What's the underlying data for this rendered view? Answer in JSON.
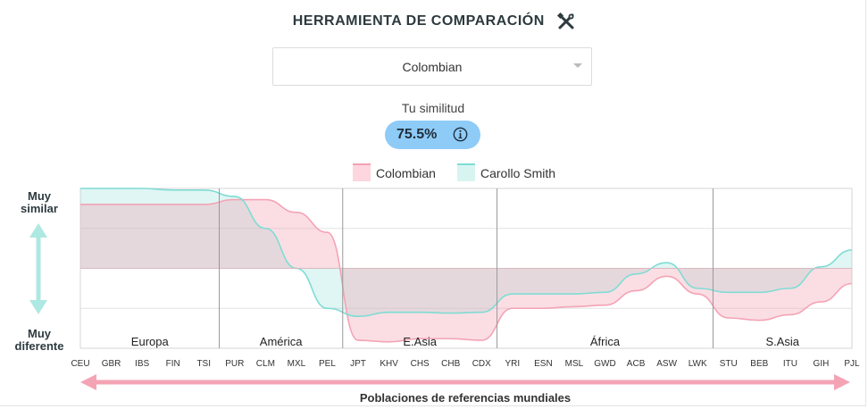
{
  "header": {
    "title": "HERRAMIENTA DE COMPARACIÓN",
    "icon": "tools-icon"
  },
  "selector": {
    "value": "Colombian"
  },
  "similarity": {
    "label": "Tu similitud",
    "value": "75.5%",
    "icon": "info-icon"
  },
  "legend": [
    {
      "label": "Colombian",
      "color": "#f2a0b3"
    },
    {
      "label": "Carollo Smith",
      "color": "#7fdcd3"
    }
  ],
  "y_axis": {
    "top_label_1": "Muy",
    "top_label_2": "similar",
    "bottom_label_1": "Muy",
    "bottom_label_2": "diferente"
  },
  "x_axis": {
    "label": "Poblaciones de referencias mundiales"
  },
  "chart_data": {
    "type": "area",
    "regions": [
      "Europa",
      "América",
      "E.Asia",
      "África",
      "S.Asia"
    ],
    "region_boundaries": [
      "TSI/PUR",
      "PEL/JPT",
      "CDX/YRI",
      "LWK/STU"
    ],
    "categories": [
      "CEU",
      "GBR",
      "IBS",
      "FIN",
      "TSI",
      "PUR",
      "CLM",
      "MXL",
      "PEL",
      "JPT",
      "KHV",
      "CHS",
      "CHB",
      "CDX",
      "YRI",
      "ESN",
      "MSL",
      "GWD",
      "ACB",
      "ASW",
      "LWK",
      "STU",
      "BEB",
      "ITU",
      "GIH",
      "PJL"
    ],
    "series": [
      {
        "name": "Colombian",
        "color": "#f2a0b3",
        "values": [
          0.8,
          0.8,
          0.8,
          0.8,
          0.8,
          0.86,
          0.86,
          0.7,
          0.45,
          -0.9,
          -0.92,
          -0.88,
          -0.88,
          -0.9,
          -0.5,
          -0.5,
          -0.48,
          -0.46,
          -0.28,
          -0.1,
          -0.32,
          -0.62,
          -0.65,
          -0.58,
          -0.42,
          -0.19
        ]
      },
      {
        "name": "Carollo Smith",
        "color": "#7fdcd3",
        "values": [
          1.0,
          1.0,
          1.0,
          0.98,
          0.98,
          0.9,
          0.5,
          0.0,
          -0.5,
          -0.6,
          -0.55,
          -0.55,
          -0.56,
          -0.55,
          -0.32,
          -0.32,
          -0.32,
          -0.3,
          -0.07,
          0.07,
          -0.25,
          -0.3,
          -0.3,
          -0.25,
          0.02,
          0.23
        ]
      }
    ],
    "baseline": 0,
    "ylim": [
      -1,
      1
    ]
  }
}
